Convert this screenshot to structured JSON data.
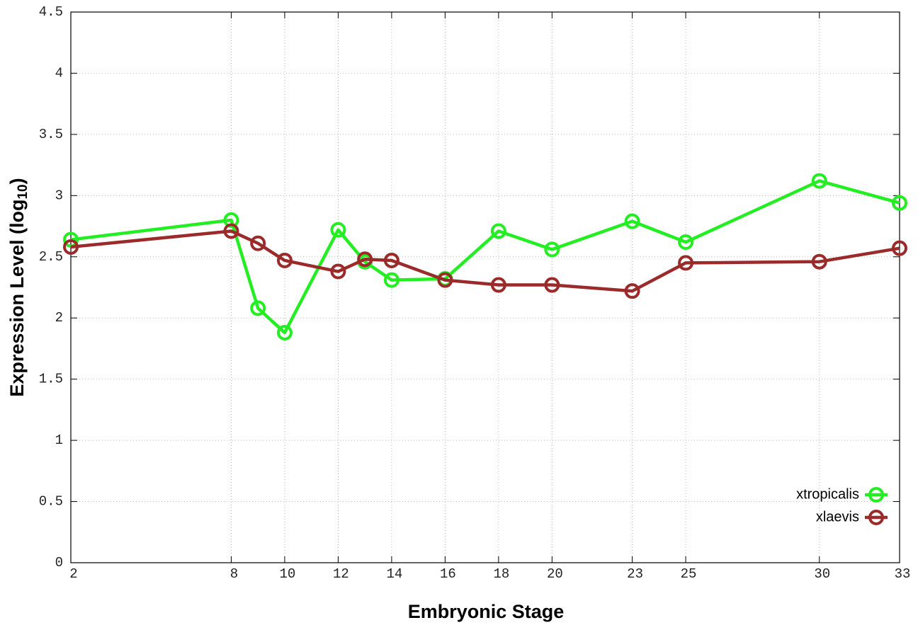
{
  "chart_data": {
    "type": "line",
    "x_label": "Embryonic Stage",
    "y_label": {
      "text": "Expression Level (log",
      "subscript": "10",
      "suffix": ")"
    },
    "x": [
      2,
      8,
      9,
      10,
      12,
      13,
      14,
      16,
      18,
      20,
      23,
      25,
      30,
      33
    ],
    "series": [
      {
        "name": "xtropicalis",
        "color": "#22ee22",
        "values": [
          2.64,
          2.8,
          2.08,
          1.88,
          2.72,
          2.46,
          2.31,
          2.32,
          2.71,
          2.56,
          2.79,
          2.62,
          3.12,
          2.94
        ]
      },
      {
        "name": "xlaevis",
        "color": "#9b2a2a",
        "values": [
          2.58,
          2.71,
          2.61,
          2.47,
          2.38,
          2.48,
          2.47,
          2.31,
          2.27,
          2.27,
          2.22,
          2.45,
          2.46,
          2.57
        ]
      }
    ],
    "xlim": [
      2,
      33
    ],
    "xticks": [
      2,
      8,
      10,
      12,
      14,
      16,
      18,
      20,
      23,
      25,
      30,
      33
    ],
    "ylim": [
      0,
      4.5
    ],
    "yticks": [
      0,
      0.5,
      1,
      1.5,
      2,
      2.5,
      3,
      3.5,
      4,
      4.5
    ],
    "grid": true,
    "legend": "lower right"
  }
}
